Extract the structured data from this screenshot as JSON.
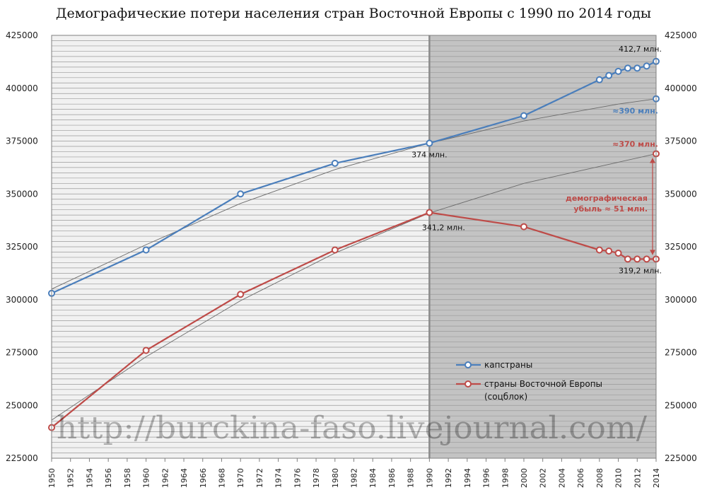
{
  "chart_data": {
    "type": "line",
    "title": "Демографические потери населения стран Восточной Европы с 1990 по 2014 годы",
    "xlim": [
      1950,
      2014
    ],
    "ylim": [
      225000,
      425000
    ],
    "y_ticks": [
      225000,
      250000,
      275000,
      300000,
      325000,
      350000,
      375000,
      400000,
      425000
    ],
    "x_ticks": [
      1950,
      1952,
      1954,
      1956,
      1958,
      1960,
      1962,
      1964,
      1966,
      1968,
      1970,
      1972,
      1974,
      1976,
      1978,
      1980,
      1982,
      1984,
      1986,
      1988,
      1990,
      1992,
      1994,
      1996,
      1998,
      2000,
      2002,
      2004,
      2006,
      2008,
      2010,
      2012,
      2014
    ],
    "grid": "horizontal",
    "shaded_region_from": 1990,
    "series": [
      {
        "name": "капстраны",
        "color": "#4a7ebb",
        "x": [
          1950,
          1960,
          1970,
          1980,
          1990,
          2000,
          2008,
          2009,
          2010,
          2011,
          2012,
          2013,
          2014
        ],
        "values": [
          303000,
          323500,
          350000,
          364500,
          374000,
          387000,
          404000,
          406000,
          408000,
          409500,
          409500,
          410500,
          412700
        ]
      },
      {
        "name": "страны Восточной Европы (соцблок)",
        "color": "#be4b48",
        "x": [
          1950,
          1960,
          1970,
          1980,
          1990,
          2000,
          2008,
          2009,
          2010,
          2011,
          2012,
          2013,
          2014
        ],
        "values": [
          239500,
          276000,
          302500,
          323500,
          341200,
          334500,
          323500,
          323000,
          322000,
          319200,
          319200,
          319200,
          319200
        ]
      }
    ],
    "projections": [
      {
        "series": "капстраны",
        "x": 2014,
        "value": 395000,
        "label": "≈390 млн.",
        "color": "#4a7ebb"
      },
      {
        "series": "страны Восточной Европы (соцблок)",
        "x": 2014,
        "value": 369000,
        "label": "≈370 млн.",
        "color": "#be4b48"
      }
    ],
    "trend_curves": [
      {
        "x": [
          1950,
          1960,
          1970,
          1980,
          1990,
          2000,
          2010,
          2014
        ],
        "values": [
          305000,
          326000,
          345500,
          361500,
          374000,
          384500,
          392500,
          395000
        ]
      },
      {
        "x": [
          1950,
          1960,
          1970,
          1980,
          1990,
          2000,
          2010,
          2014
        ],
        "values": [
          243000,
          273000,
          299500,
          322000,
          341000,
          355000,
          365000,
          369000
        ]
      }
    ],
    "annotations": [
      {
        "x": 2014,
        "value": 412700,
        "text": "412,7 млн.",
        "color": "#111111"
      },
      {
        "x": 1990,
        "value": 374000,
        "text": "374 млн.",
        "color": "#111111"
      },
      {
        "x": 1990,
        "value": 341200,
        "text": "341,2 млн.",
        "color": "#111111"
      },
      {
        "x": 2014,
        "value": 319200,
        "text": "319,2 млн.",
        "color": "#111111"
      }
    ],
    "loss_annotation": {
      "lines": [
        "демографическая",
        "убыль ≈ 51 млн."
      ],
      "color": "#be4b48"
    },
    "legend_position": "lower-right",
    "watermark": "http://burckina-faso.livejournal.com/"
  }
}
